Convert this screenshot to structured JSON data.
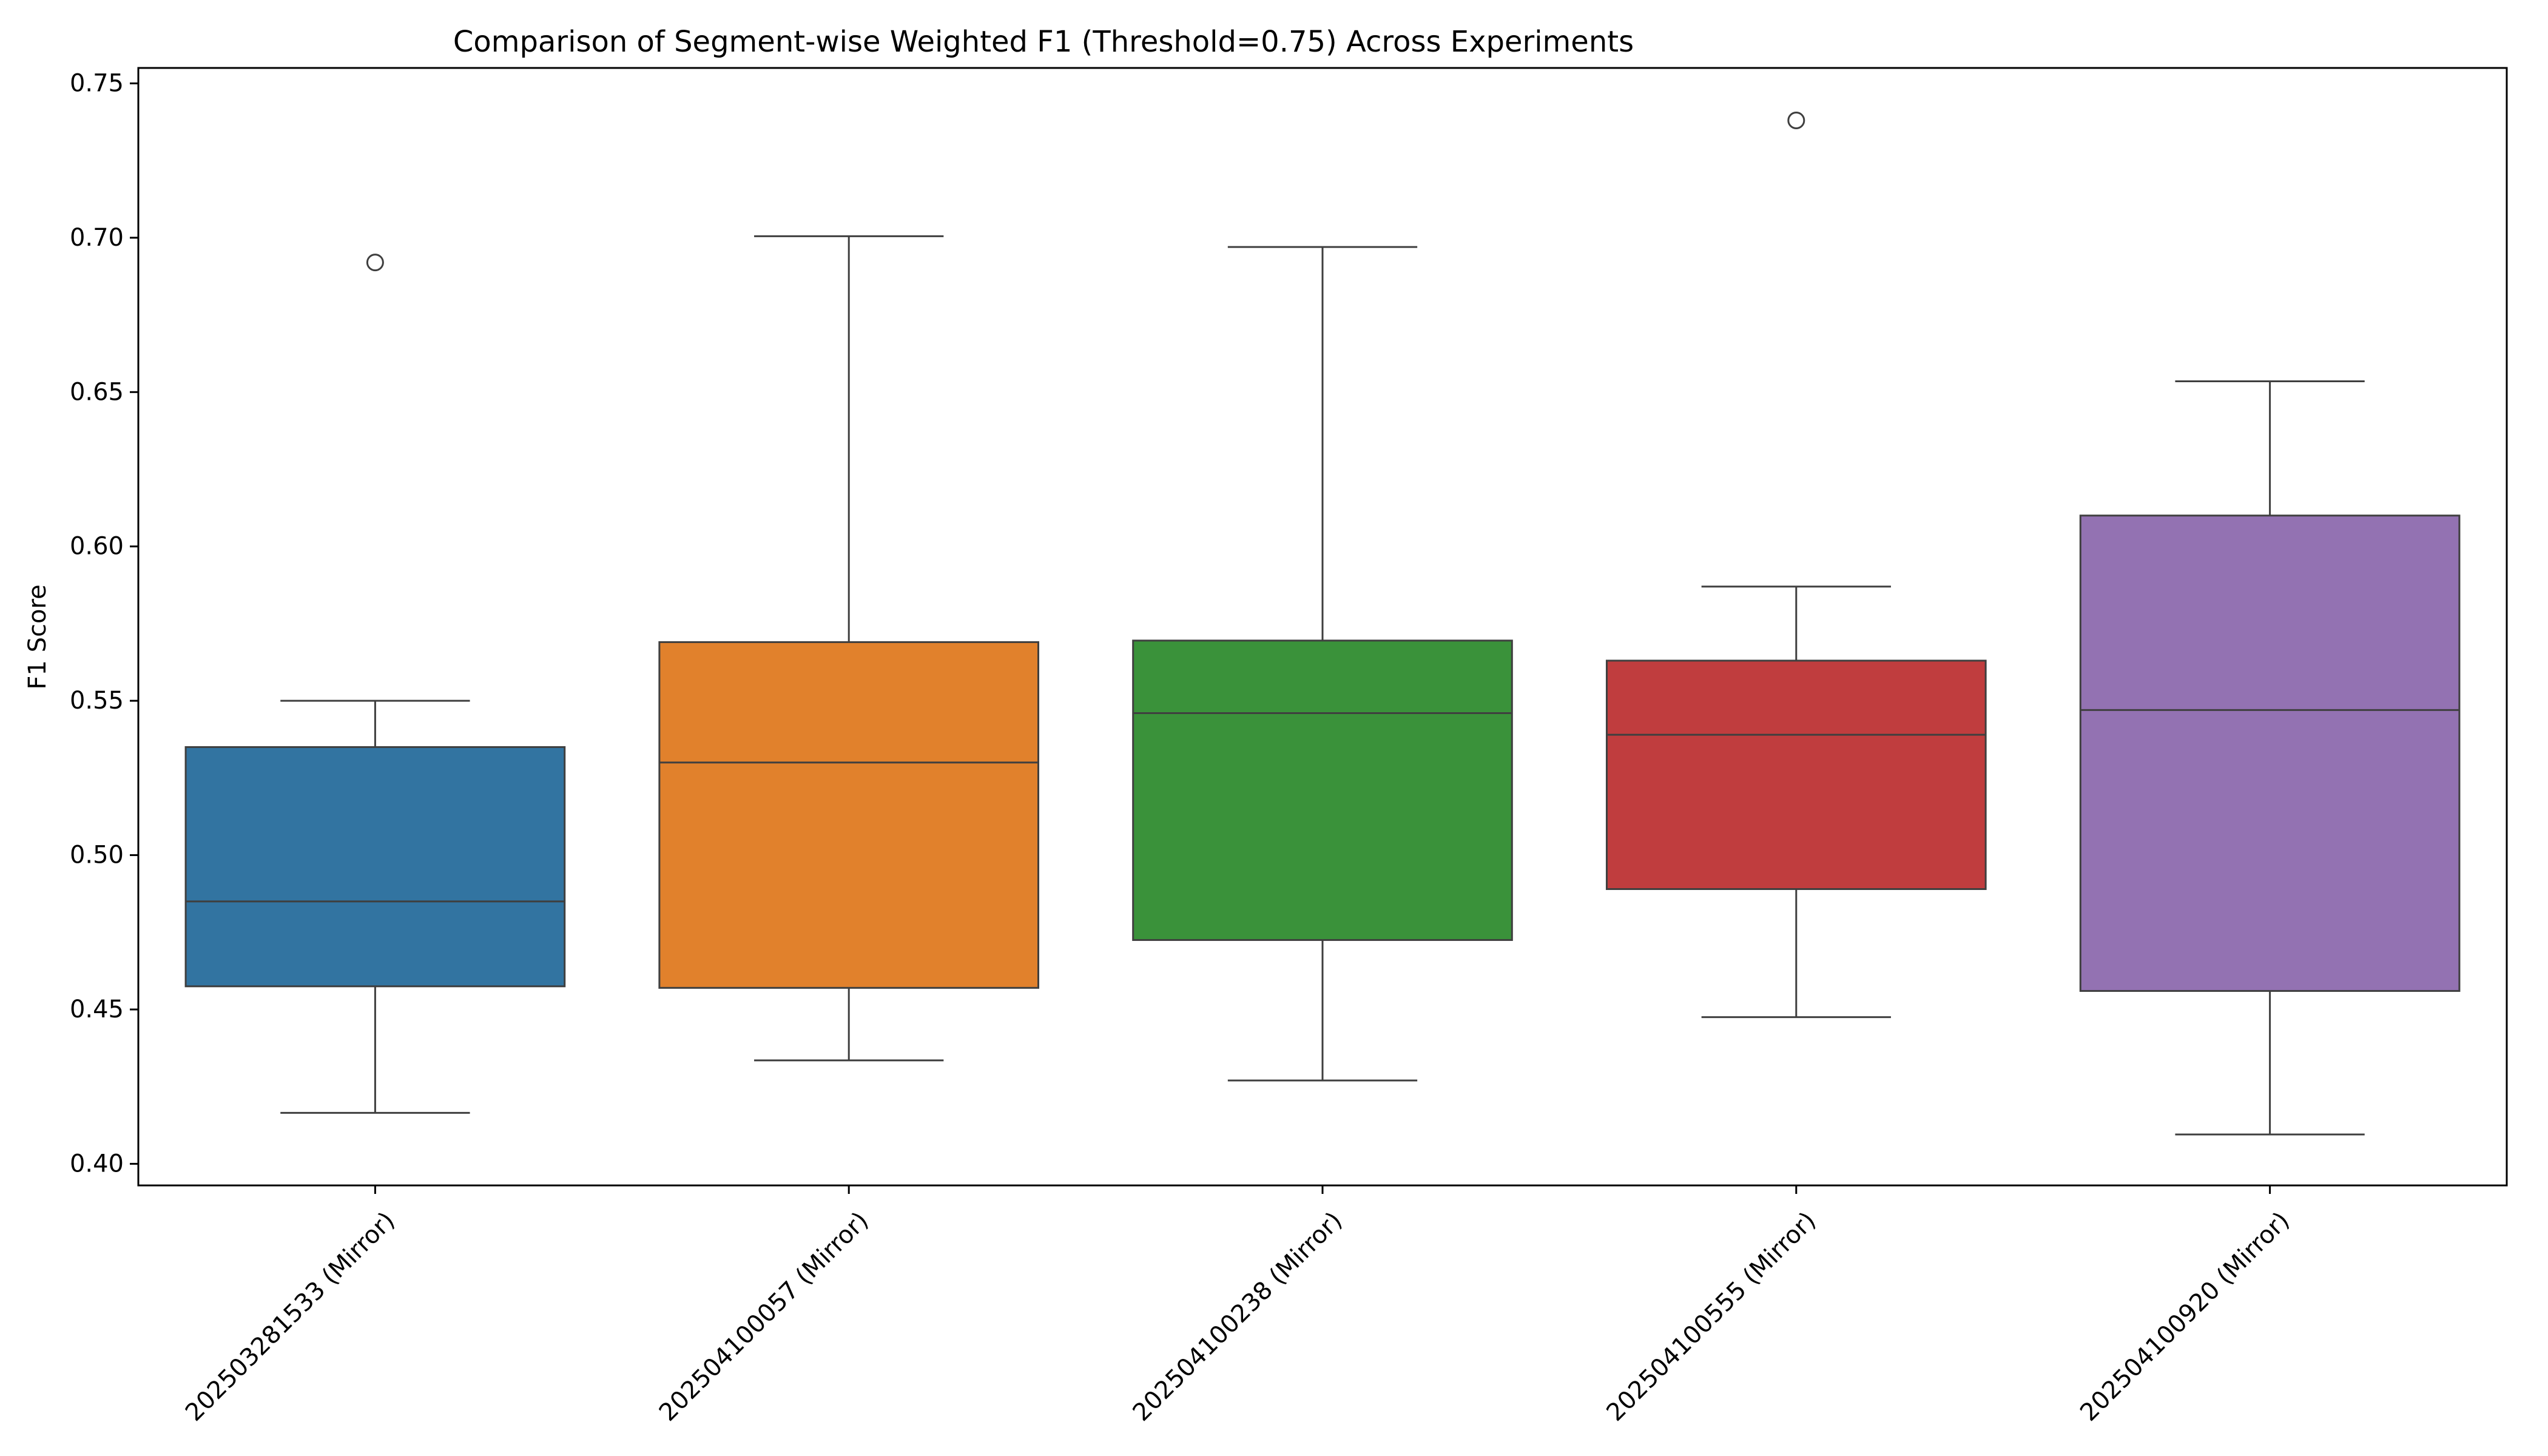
{
  "chart_data": {
    "type": "box",
    "title": "Comparison of Segment-wise Weighted F1 (Threshold=0.75) Across Experiments",
    "xlabel": "",
    "ylabel": "F1 Score",
    "ylim": [
      0.393,
      0.755
    ],
    "yticks": [
      "0.40",
      "0.45",
      "0.50",
      "0.55",
      "0.60",
      "0.65",
      "0.70",
      "0.75"
    ],
    "grid": false,
    "boxes": [
      {
        "category": "202503281533 (Mirror)",
        "color": "#3274a1",
        "whisker_low": 0.4165,
        "q1": 0.4575,
        "median": 0.485,
        "q3": 0.535,
        "whisker_high": 0.55,
        "outliers": [
          0.692
        ]
      },
      {
        "category": "202504100057 (Mirror)",
        "color": "#e1812c",
        "whisker_low": 0.4335,
        "q1": 0.457,
        "median": 0.53,
        "q3": 0.569,
        "whisker_high": 0.7005,
        "outliers": []
      },
      {
        "category": "202504100238 (Mirror)",
        "color": "#3a923a",
        "whisker_low": 0.427,
        "q1": 0.4725,
        "median": 0.546,
        "q3": 0.5695,
        "whisker_high": 0.697,
        "outliers": []
      },
      {
        "category": "202504100555 (Mirror)",
        "color": "#c03d3e",
        "whisker_low": 0.4475,
        "q1": 0.489,
        "median": 0.539,
        "q3": 0.563,
        "whisker_high": 0.587,
        "outliers": [
          0.738
        ]
      },
      {
        "category": "202504100920 (Mirror)",
        "color": "#9372b2",
        "whisker_low": 0.4095,
        "q1": 0.456,
        "median": 0.547,
        "q3": 0.61,
        "whisker_high": 0.6535,
        "outliers": []
      }
    ]
  }
}
